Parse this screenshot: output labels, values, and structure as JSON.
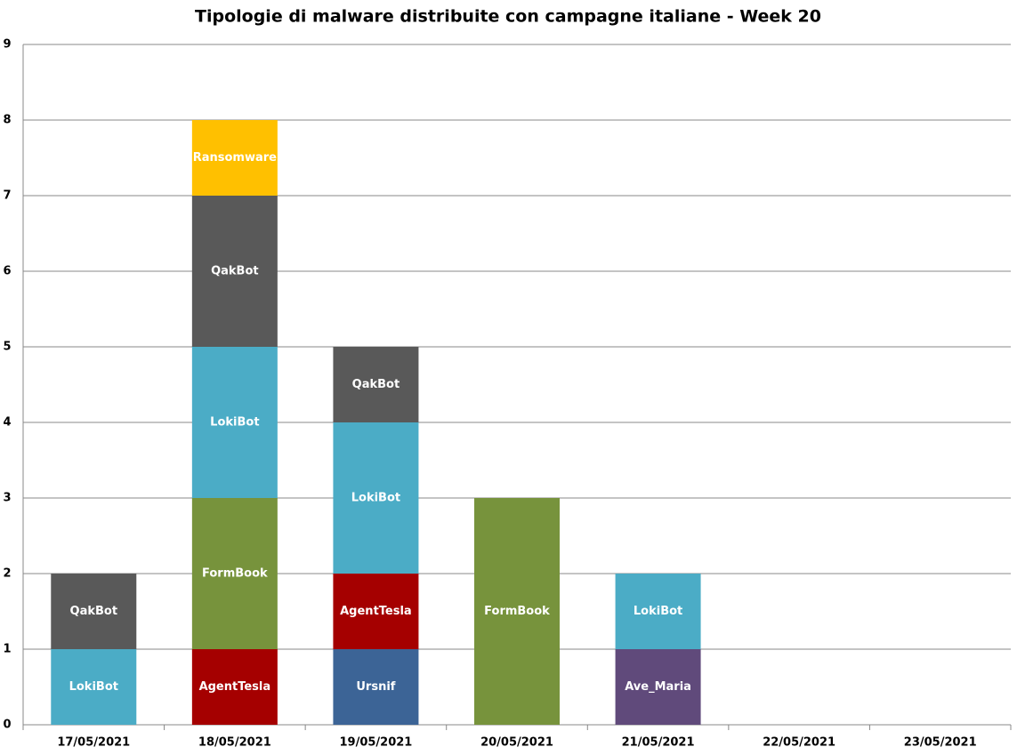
{
  "chart_data": {
    "type": "stacked_bar",
    "title": "Tipologie di malware distribuite con campagne italiane - Week 20",
    "categories": [
      "17/05/2021",
      "18/05/2021",
      "19/05/2021",
      "20/05/2021",
      "21/05/2021",
      "22/05/2021",
      "23/05/2021"
    ],
    "series": [
      {
        "name": "Ursnif",
        "color": "#3c6496",
        "values": [
          0,
          0,
          1,
          0,
          0,
          0,
          0
        ]
      },
      {
        "name": "AgentTesla",
        "color": "#a50000",
        "values": [
          0,
          1,
          1,
          0,
          0,
          0,
          0
        ]
      },
      {
        "name": "Ave_Maria",
        "color": "#604a7b",
        "values": [
          0,
          0,
          0,
          0,
          1,
          0,
          0
        ]
      },
      {
        "name": "FormBook",
        "color": "#77933c",
        "values": [
          0,
          2,
          0,
          3,
          0,
          0,
          0
        ]
      },
      {
        "name": "LokiBot",
        "color": "#4bacc6",
        "values": [
          1,
          2,
          2,
          0,
          1,
          0,
          0
        ]
      },
      {
        "name": "QakBot",
        "color": "#595959",
        "values": [
          1,
          2,
          1,
          0,
          0,
          0,
          0
        ]
      },
      {
        "name": "Ransomware",
        "color": "#ffc000",
        "values": [
          0,
          1,
          0,
          0,
          0,
          0,
          0
        ]
      }
    ],
    "ylim": [
      0,
      9
    ],
    "yticks": [
      0,
      1,
      2,
      3,
      4,
      5,
      6,
      7,
      8,
      9
    ],
    "grid": true
  }
}
